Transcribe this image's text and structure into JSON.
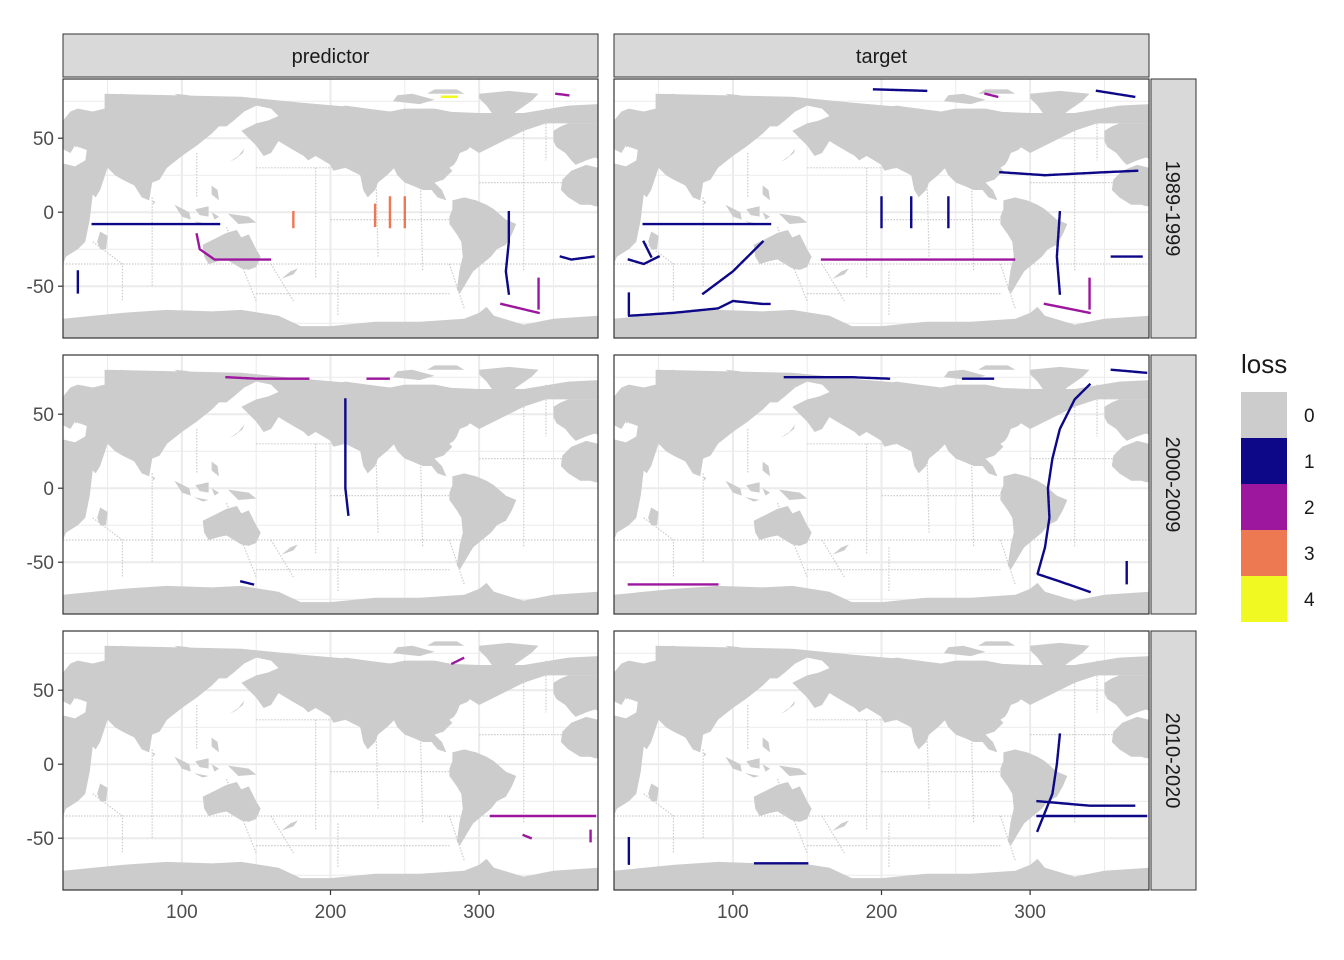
{
  "chart_data": {
    "type": "heatmap",
    "description_kind": "faceted world map grid",
    "facet_cols": [
      "predictor",
      "target"
    ],
    "facet_rows": [
      "1989-1999",
      "2000-2009",
      "2010-2020"
    ],
    "x_ticks": [
      100,
      200,
      300
    ],
    "y_ticks": [
      50,
      0,
      -50
    ],
    "xlim": [
      20,
      380
    ],
    "ylim": [
      -85,
      90
    ],
    "land_color": "#cccccc",
    "grid_color": "#ebebeb",
    "legend": {
      "title": "loss",
      "position": "right",
      "levels": [
        {
          "label": "0",
          "color": "#cccccc"
        },
        {
          "label": "1",
          "color": "#0d0887"
        },
        {
          "label": "2",
          "color": "#9c179e"
        },
        {
          "label": "3",
          "color": "#ed7953"
        },
        {
          "label": "4",
          "color": "#f0f921"
        }
      ]
    },
    "panels": [
      {
        "col": "predictor",
        "row": "1989-1999",
        "segments": [
          {
            "loss": 1,
            "points": [
              [
                40,
                -8
              ],
              [
                80,
                -8
              ],
              [
                105,
                -8
              ],
              [
                125,
                -8
              ]
            ]
          },
          {
            "loss": 1,
            "points": [
              [
                30,
                -40
              ],
              [
                30,
                -55
              ]
            ]
          },
          {
            "loss": 2,
            "points": [
              [
                110,
                -15
              ],
              [
                112,
                -25
              ],
              [
                122,
                -32
              ],
              [
                160,
                -32
              ]
            ]
          },
          {
            "loss": 1,
            "points": [
              [
                320,
                0
              ],
              [
                320,
                -20
              ],
              [
                318,
                -40
              ],
              [
                320,
                -55
              ]
            ]
          },
          {
            "loss": 1,
            "points": [
              [
                355,
                -30
              ],
              [
                362,
                -32
              ],
              [
                377,
                -30
              ]
            ]
          },
          {
            "loss": 2,
            "points": [
              [
                340,
                -45
              ],
              [
                340,
                -65
              ]
            ]
          },
          {
            "loss": 2,
            "points": [
              [
                315,
                -62
              ],
              [
                340,
                -68
              ]
            ]
          },
          {
            "loss": 3,
            "points": [
              [
                175,
                0
              ],
              [
                175,
                -10
              ]
            ]
          },
          {
            "loss": 3,
            "points": [
              [
                230,
                5
              ],
              [
                230,
                -10
              ]
            ]
          },
          {
            "loss": 3,
            "points": [
              [
                240,
                10
              ],
              [
                240,
                -10
              ]
            ]
          },
          {
            "loss": 3,
            "points": [
              [
                250,
                10
              ],
              [
                250,
                -10
              ]
            ]
          },
          {
            "loss": 4,
            "points": [
              [
                275,
                78
              ],
              [
                285,
                78
              ]
            ]
          },
          {
            "loss": 2,
            "points": [
              [
                352,
                80
              ],
              [
                360,
                79
              ]
            ]
          }
        ]
      },
      {
        "col": "target",
        "row": "1989-1999",
        "segments": [
          {
            "loss": 1,
            "points": [
              [
                40,
                -8
              ],
              [
                90,
                -8
              ],
              [
                110,
                -8
              ],
              [
                125,
                -8
              ]
            ]
          },
          {
            "loss": 1,
            "points": [
              [
                30,
                -32
              ],
              [
                40,
                -35
              ],
              [
                50,
                -30
              ]
            ]
          },
          {
            "loss": 1,
            "points": [
              [
                30,
                -55
              ],
              [
                30,
                -70
              ],
              [
                60,
                -68
              ],
              [
                90,
                -65
              ],
              [
                100,
                -60
              ],
              [
                120,
                -62
              ],
              [
                125,
                -62
              ]
            ]
          },
          {
            "loss": 1,
            "points": [
              [
                80,
                -55
              ],
              [
                100,
                -40
              ],
              [
                115,
                -25
              ],
              [
                120,
                -20
              ]
            ]
          },
          {
            "loss": 1,
            "points": [
              [
                40,
                -20
              ],
              [
                45,
                -30
              ]
            ]
          },
          {
            "loss": 2,
            "points": [
              [
                160,
                -32
              ],
              [
                190,
                -32
              ],
              [
                250,
                -32
              ],
              [
                290,
                -32
              ]
            ]
          },
          {
            "loss": 1,
            "points": [
              [
                280,
                27
              ],
              [
                310,
                25
              ],
              [
                350,
                27
              ],
              [
                372,
                28
              ]
            ]
          },
          {
            "loss": 1,
            "points": [
              [
                320,
                0
              ],
              [
                318,
                -30
              ],
              [
                320,
                -55
              ]
            ]
          },
          {
            "loss": 1,
            "points": [
              [
                355,
                -30
              ],
              [
                375,
                -30
              ]
            ]
          },
          {
            "loss": 2,
            "points": [
              [
                340,
                -45
              ],
              [
                340,
                -65
              ]
            ]
          },
          {
            "loss": 2,
            "points": [
              [
                310,
                -62
              ],
              [
                340,
                -68
              ]
            ]
          },
          {
            "loss": 1,
            "points": [
              [
                200,
                10
              ],
              [
                200,
                -10
              ]
            ]
          },
          {
            "loss": 1,
            "points": [
              [
                220,
                10
              ],
              [
                220,
                -10
              ]
            ]
          },
          {
            "loss": 1,
            "points": [
              [
                245,
                10
              ],
              [
                245,
                -10
              ]
            ]
          },
          {
            "loss": 1,
            "points": [
              [
                345,
                82
              ],
              [
                370,
                78
              ]
            ]
          },
          {
            "loss": 1,
            "points": [
              [
                195,
                83
              ],
              [
                230,
                82
              ]
            ]
          },
          {
            "loss": 2,
            "points": [
              [
                270,
                80
              ],
              [
                278,
                78
              ]
            ]
          }
        ]
      },
      {
        "col": "predictor",
        "row": "2000-2009",
        "segments": [
          {
            "loss": 1,
            "points": [
              [
                210,
                60
              ],
              [
                210,
                30
              ],
              [
                210,
                0
              ],
              [
                212,
                -18
              ]
            ]
          },
          {
            "loss": 2,
            "points": [
              [
                130,
                75
              ],
              [
                150,
                74
              ],
              [
                175,
                74
              ],
              [
                185,
                74
              ]
            ]
          },
          {
            "loss": 2,
            "points": [
              [
                225,
                74
              ],
              [
                240,
                74
              ]
            ]
          },
          {
            "loss": 1,
            "points": [
              [
                140,
                -63
              ],
              [
                148,
                -65
              ]
            ]
          }
        ]
      },
      {
        "col": "target",
        "row": "2000-2009",
        "segments": [
          {
            "loss": 1,
            "points": [
              [
                340,
                70
              ],
              [
                330,
                60
              ],
              [
                320,
                40
              ],
              [
                315,
                20
              ],
              [
                312,
                0
              ],
              [
                313,
                -20
              ],
              [
                310,
                -40
              ],
              [
                305,
                -58
              ],
              [
                320,
                -63
              ],
              [
                340,
                -70
              ]
            ]
          },
          {
            "loss": 1,
            "points": [
              [
                365,
                -50
              ],
              [
                365,
                -65
              ]
            ]
          },
          {
            "loss": 1,
            "points": [
              [
                135,
                75
              ],
              [
                180,
                75
              ],
              [
                205,
                74
              ]
            ]
          },
          {
            "loss": 1,
            "points": [
              [
                255,
                74
              ],
              [
                275,
                74
              ]
            ]
          },
          {
            "loss": 1,
            "points": [
              [
                355,
                80
              ],
              [
                378,
                78
              ]
            ]
          },
          {
            "loss": 2,
            "points": [
              [
                30,
                -65
              ],
              [
                90,
                -65
              ]
            ]
          }
        ]
      },
      {
        "col": "predictor",
        "row": "2010-2020",
        "segments": [
          {
            "loss": 2,
            "points": [
              [
                308,
                -35
              ],
              [
                350,
                -35
              ],
              [
                378,
                -35
              ]
            ]
          },
          {
            "loss": 2,
            "points": [
              [
                282,
                68
              ],
              [
                290,
                72
              ]
            ]
          },
          {
            "loss": 2,
            "points": [
              [
                330,
                -48
              ],
              [
                335,
                -50
              ]
            ]
          },
          {
            "loss": 2,
            "points": [
              [
                375,
                -45
              ],
              [
                375,
                -52
              ]
            ]
          }
        ]
      },
      {
        "col": "target",
        "row": "2010-2020",
        "segments": [
          {
            "loss": 1,
            "points": [
              [
                305,
                -25
              ],
              [
                340,
                -28
              ],
              [
                370,
                -28
              ]
            ]
          },
          {
            "loss": 1,
            "points": [
              [
                305,
                -35
              ],
              [
                340,
                -35
              ],
              [
                378,
                -35
              ]
            ]
          },
          {
            "loss": 1,
            "points": [
              [
                320,
                20
              ],
              [
                318,
                0
              ],
              [
                315,
                -20
              ],
              [
                305,
                -45
              ]
            ]
          },
          {
            "loss": 1,
            "points": [
              [
                30,
                -50
              ],
              [
                30,
                -68
              ]
            ]
          },
          {
            "loss": 1,
            "points": [
              [
                115,
                -67
              ],
              [
                150,
                -67
              ]
            ]
          }
        ]
      }
    ]
  }
}
